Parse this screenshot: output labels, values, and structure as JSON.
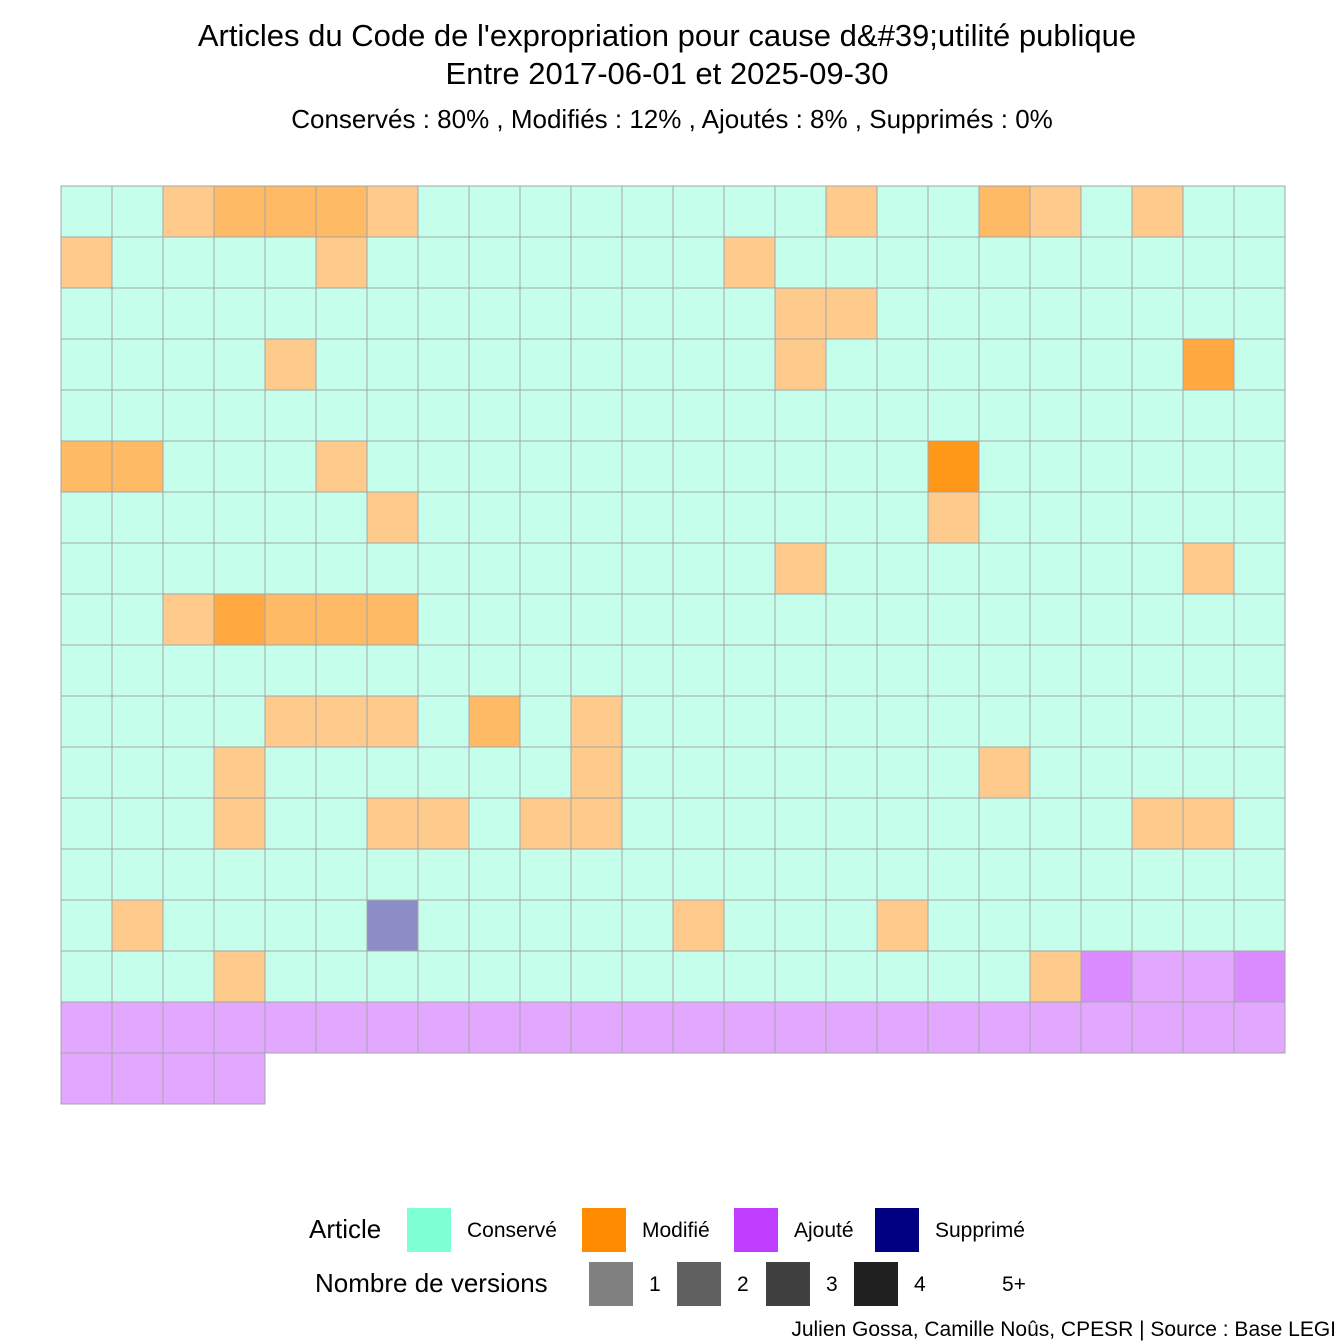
{
  "chart_data": {
    "type": "heatmap",
    "title": "Articles du Code de l'expropriation pour cause d&#39;utilité publique",
    "title_line2": "Entre 2017-06-01 et 2025-09-30",
    "subtitle": "Conservés :  80% , Modifiés :  12% , Ajoutés :  8% , Supprimés :  0%",
    "grid_columns": 24,
    "status_codes": {
      "C": "Conservé",
      "M": "Modifié",
      "A": "Ajouté",
      "S": "Supprimé"
    },
    "rows": [
      [
        "C1",
        "C1",
        "M1",
        "M2",
        "M2",
        "M2",
        "M1",
        "C1",
        "C1",
        "C1",
        "C1",
        "C1",
        "C1",
        "C1",
        "C1",
        "M1",
        "C1",
        "C1",
        "M2",
        "M1",
        "C1",
        "M1",
        "C1",
        "C1"
      ],
      [
        "M1",
        "C1",
        "C1",
        "C1",
        "C1",
        "M1",
        "C1",
        "C1",
        "C1",
        "C1",
        "C1",
        "C1",
        "C1",
        "M1",
        "C1",
        "C1",
        "C1",
        "C1",
        "C1",
        "C1",
        "C1",
        "C1",
        "C1",
        "C1"
      ],
      [
        "C1",
        "C1",
        "C1",
        "C1",
        "C1",
        "C1",
        "C1",
        "C1",
        "C1",
        "C1",
        "C1",
        "C1",
        "C1",
        "C1",
        "M1",
        "M1",
        "C1",
        "C1",
        "C1",
        "C1",
        "C1",
        "C1",
        "C1",
        "C1"
      ],
      [
        "C1",
        "C1",
        "C1",
        "C1",
        "M1",
        "C1",
        "C1",
        "C1",
        "C1",
        "C1",
        "C1",
        "C1",
        "C1",
        "C1",
        "M1",
        "C1",
        "C1",
        "C1",
        "C1",
        "C1",
        "C1",
        "C1",
        "M3",
        "C1"
      ],
      [
        "C1",
        "C1",
        "C1",
        "C1",
        "C1",
        "C1",
        "C1",
        "C1",
        "C1",
        "C1",
        "C1",
        "C1",
        "C1",
        "C1",
        "C1",
        "C1",
        "C1",
        "C1",
        "C1",
        "C1",
        "C1",
        "C1",
        "C1",
        "C1"
      ],
      [
        "M2",
        "M2",
        "C1",
        "C1",
        "C1",
        "M1",
        "C1",
        "C1",
        "C1",
        "C1",
        "C1",
        "C1",
        "C1",
        "C1",
        "C1",
        "C1",
        "C1",
        "M4",
        "C1",
        "C1",
        "C1",
        "C1",
        "C1",
        "C1"
      ],
      [
        "C1",
        "C1",
        "C1",
        "C1",
        "C1",
        "C1",
        "M1",
        "C1",
        "C1",
        "C1",
        "C1",
        "C1",
        "C1",
        "C1",
        "C1",
        "C1",
        "C1",
        "M1",
        "C1",
        "C1",
        "C1",
        "C1",
        "C1",
        "C1"
      ],
      [
        "C1",
        "C1",
        "C1",
        "C1",
        "C1",
        "C1",
        "C1",
        "C1",
        "C1",
        "C1",
        "C1",
        "C1",
        "C1",
        "C1",
        "M1",
        "C1",
        "C1",
        "C1",
        "C1",
        "C1",
        "C1",
        "C1",
        "M1",
        "C1"
      ],
      [
        "C1",
        "C1",
        "M1",
        "M3",
        "M2",
        "M2",
        "M2",
        "C1",
        "C1",
        "C1",
        "C1",
        "C1",
        "C1",
        "C1",
        "C1",
        "C1",
        "C1",
        "C1",
        "C1",
        "C1",
        "C1",
        "C1",
        "C1",
        "C1"
      ],
      [
        "C1",
        "C1",
        "C1",
        "C1",
        "C1",
        "C1",
        "C1",
        "C1",
        "C1",
        "C1",
        "C1",
        "C1",
        "C1",
        "C1",
        "C1",
        "C1",
        "C1",
        "C1",
        "C1",
        "C1",
        "C1",
        "C1",
        "C1",
        "C1"
      ],
      [
        "C1",
        "C1",
        "C1",
        "C1",
        "M1",
        "M1",
        "M1",
        "C1",
        "M2",
        "C1",
        "M1",
        "C1",
        "C1",
        "C1",
        "C1",
        "C1",
        "C1",
        "C1",
        "C1",
        "C1",
        "C1",
        "C1",
        "C1",
        "C1"
      ],
      [
        "C1",
        "C1",
        "C1",
        "M1",
        "C1",
        "C1",
        "C1",
        "C1",
        "C1",
        "C1",
        "M1",
        "C1",
        "C1",
        "C1",
        "C1",
        "C1",
        "C1",
        "C1",
        "M1",
        "C1",
        "C1",
        "C1",
        "C1",
        "C1"
      ],
      [
        "C1",
        "C1",
        "C1",
        "M1",
        "C1",
        "C1",
        "M1",
        "M1",
        "C1",
        "M1",
        "M1",
        "C1",
        "C1",
        "C1",
        "C1",
        "C1",
        "C1",
        "C1",
        "C1",
        "C1",
        "C1",
        "M1",
        "M1",
        "C1"
      ],
      [
        "C1",
        "C1",
        "C1",
        "C1",
        "C1",
        "C1",
        "C1",
        "C1",
        "C1",
        "C1",
        "C1",
        "C1",
        "C1",
        "C1",
        "C1",
        "C1",
        "C1",
        "C1",
        "C1",
        "C1",
        "C1",
        "C1",
        "C1",
        "C1"
      ],
      [
        "C1",
        "M1",
        "C1",
        "C1",
        "C1",
        "C1",
        "S1",
        "C1",
        "C1",
        "C1",
        "C1",
        "C1",
        "M1",
        "C1",
        "C1",
        "C1",
        "M1",
        "C1",
        "C1",
        "C1",
        "C1",
        "C1",
        "C1",
        "C1"
      ],
      [
        "C1",
        "C1",
        "C1",
        "M1",
        "C1",
        "C1",
        "C1",
        "C1",
        "C1",
        "C1",
        "C1",
        "C1",
        "C1",
        "C1",
        "C1",
        "C1",
        "C1",
        "C1",
        "C1",
        "M1",
        "A2",
        "A1",
        "A1",
        "A2"
      ],
      [
        "A1",
        "A1",
        "A1",
        "A1",
        "A1",
        "A1",
        "A1",
        "A1",
        "A1",
        "A1",
        "A1",
        "A1",
        "A1",
        "A1",
        "A1",
        "A1",
        "A1",
        "A1",
        "A1",
        "A1",
        "A1",
        "A1",
        "A1",
        "A1"
      ],
      [
        "A1",
        "A1",
        "A1",
        "A1"
      ]
    ],
    "colors": {
      "Conservé": "#7fffd4",
      "Modifié": "#ff8c00",
      "Ajouté": "#bf3eff",
      "Supprimé": "#000080",
      "grid_line": "#a6a6a6"
    },
    "legend": {
      "article_title": "Article",
      "article_items": [
        "Conservé",
        "Modifié",
        "Ajouté",
        "Supprimé"
      ],
      "versions_title": "Nombre de versions",
      "versions_items": [
        "1",
        "2",
        "3",
        "4",
        "5+"
      ],
      "versions_key_colors": [
        "#808080",
        "#606060",
        "#404040",
        "#202020",
        "#ffffff"
      ],
      "placement": "bottom"
    },
    "caption": "Julien Gossa, Camille Noûs, CPESR  |  Source : Base LEGI"
  }
}
